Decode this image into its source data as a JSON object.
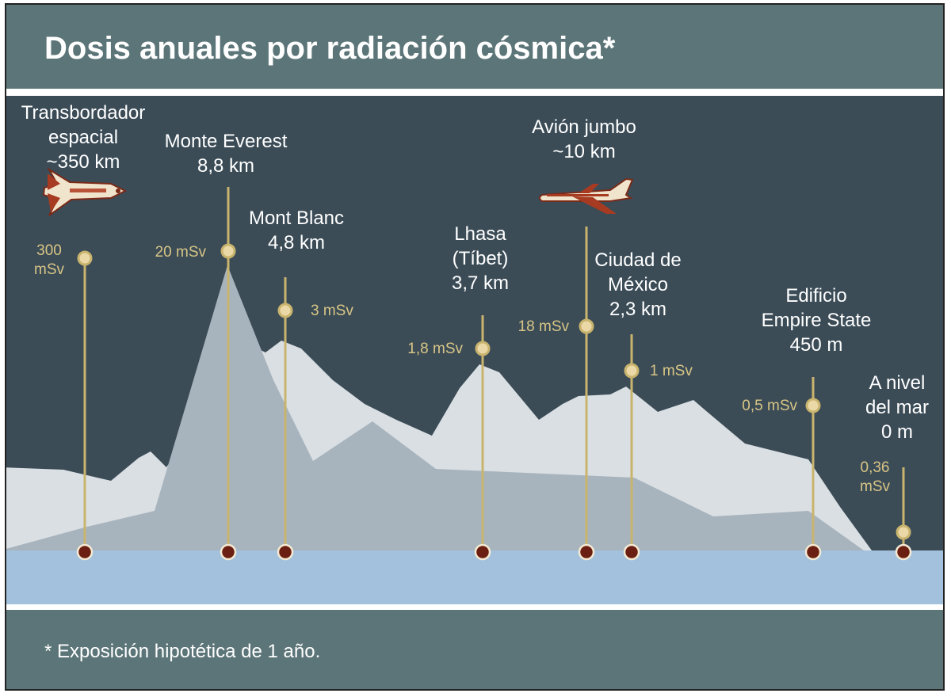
{
  "title": "Dosis anuales por radiación cósmica*",
  "footnote": "* Exposición hipotética de 1 año.",
  "colors": {
    "title_band": "#5c7578",
    "sky": "#3b4c57",
    "sea": "#a3c1dd",
    "stem": "#c9b46e",
    "dose_dot": "#ead9a6",
    "base_dot": "#6b1f12"
  },
  "locations": [
    {
      "id": "shuttle",
      "label": [
        "Transbordador",
        "espacial",
        "~350 km"
      ],
      "dose": [
        "300",
        "mSv"
      ],
      "icon": "space-shuttle-icon"
    },
    {
      "id": "everest",
      "label": [
        "Monte Everest",
        "8,8 km"
      ],
      "dose": [
        "20 mSv"
      ]
    },
    {
      "id": "montblanc",
      "label": [
        "Mont Blanc",
        "4,8 km"
      ],
      "dose": [
        "3 mSv"
      ]
    },
    {
      "id": "lhasa",
      "label": [
        "Lhasa",
        "(Tíbet)",
        "3,7 km"
      ],
      "dose": [
        "1,8 mSv"
      ]
    },
    {
      "id": "jumbo",
      "label": [
        "Avión jumbo",
        "~10 km"
      ],
      "dose": [
        "18 mSv"
      ],
      "icon": "jumbo-jet-icon"
    },
    {
      "id": "mexico",
      "label": [
        "Ciudad de",
        "México",
        "2,3 km"
      ],
      "dose": [
        "1 mSv"
      ]
    },
    {
      "id": "empire",
      "label": [
        "Edificio",
        "Empire State",
        "450 m"
      ],
      "dose": [
        "0,5 mSv"
      ]
    },
    {
      "id": "sealevel",
      "label": [
        "A nivel",
        "del mar",
        "0 m"
      ],
      "dose": [
        "0,36",
        "mSv"
      ]
    }
  ]
}
